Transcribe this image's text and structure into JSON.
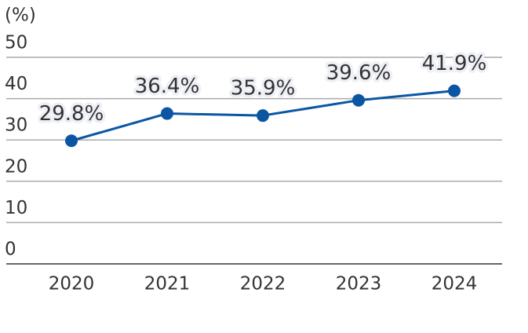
{
  "chart_data": {
    "type": "line",
    "y_label": "(%)",
    "categories": [
      "2020",
      "2021",
      "2022",
      "2023",
      "2024"
    ],
    "series": [
      {
        "name": null,
        "color": "#0b56a3",
        "values": [
          29.8,
          36.4,
          35.9,
          39.6,
          41.9
        ],
        "value_labels": [
          "29.8%",
          "36.4%",
          "35.9%",
          "39.6%",
          "41.9%"
        ]
      }
    ],
    "ylim": [
      0,
      50
    ],
    "yticks": [
      0,
      10,
      20,
      30,
      40,
      50
    ],
    "grid": true
  }
}
